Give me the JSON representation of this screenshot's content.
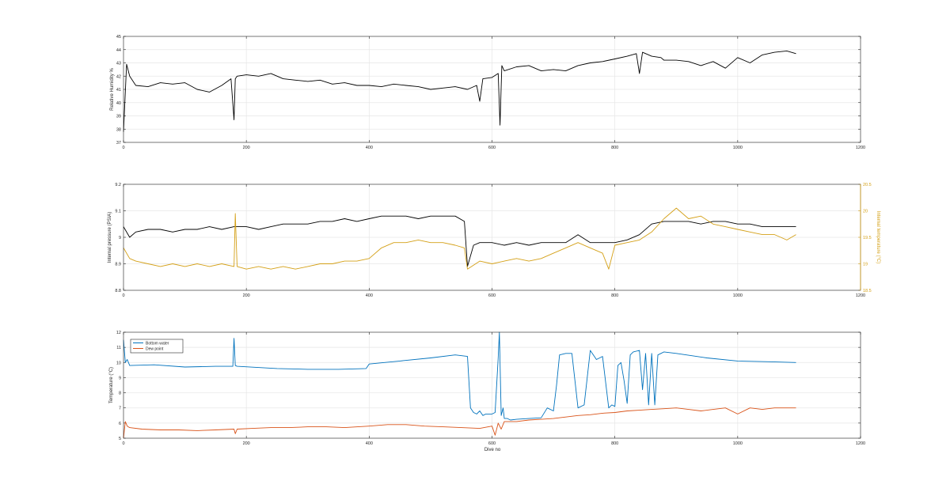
{
  "figure": {
    "xlabel": "Dive no",
    "colors": {
      "black": "#000000",
      "amber": "#d4a017",
      "blue": "#0072bd",
      "orange": "#d95319",
      "grid": "#e6e6e6",
      "axis": "#262626"
    }
  },
  "chart_data": [
    {
      "type": "line",
      "ylabel": "Relative Humidity %",
      "xlim": [
        0,
        1200
      ],
      "ylim": [
        37,
        45
      ],
      "xticks": [
        0,
        200,
        400,
        600,
        800,
        1000,
        1200
      ],
      "yticks": [
        37,
        38,
        39,
        40,
        41,
        42,
        43,
        44,
        45
      ],
      "grid": true,
      "series": [
        {
          "color": "#000000",
          "x": [
            0,
            5,
            10,
            20,
            40,
            60,
            80,
            100,
            120,
            140,
            160,
            175,
            180,
            182,
            185,
            200,
            220,
            240,
            260,
            280,
            300,
            320,
            340,
            360,
            380,
            400,
            420,
            440,
            460,
            480,
            500,
            520,
            540,
            560,
            575,
            580,
            585,
            600,
            610,
            613,
            616,
            620,
            640,
            660,
            680,
            700,
            720,
            740,
            760,
            780,
            800,
            820,
            835,
            840,
            845,
            860,
            875,
            880,
            900,
            920,
            940,
            960,
            980,
            1000,
            1020,
            1040,
            1060,
            1080,
            1095
          ],
          "y": [
            37.8,
            42.9,
            42.0,
            41.3,
            41.2,
            41.5,
            41.4,
            41.5,
            41.0,
            40.8,
            41.3,
            41.8,
            38.7,
            41.8,
            42.0,
            42.1,
            42.0,
            42.2,
            41.8,
            41.7,
            41.6,
            41.7,
            41.4,
            41.5,
            41.3,
            41.3,
            41.2,
            41.4,
            41.3,
            41.2,
            41.0,
            41.1,
            41.2,
            41.0,
            41.3,
            40.1,
            41.8,
            41.9,
            42.2,
            38.3,
            42.8,
            42.4,
            42.7,
            42.8,
            42.4,
            42.5,
            42.4,
            42.8,
            43.0,
            43.1,
            43.3,
            43.5,
            43.7,
            42.2,
            43.8,
            43.5,
            43.4,
            43.2,
            43.2,
            43.1,
            42.8,
            43.1,
            42.6,
            43.4,
            43.0,
            43.6,
            43.8,
            43.9,
            43.7
          ]
        }
      ]
    },
    {
      "type": "line",
      "ylabel": "Internal pressure (PSIA)",
      "ylabel_right": "Internal temperature (°C)",
      "xlim": [
        0,
        1200
      ],
      "ylim": [
        8.8,
        9.2
      ],
      "ylim_right": [
        18.5,
        20.5
      ],
      "xticks": [
        0,
        200,
        400,
        600,
        800,
        1000,
        1200
      ],
      "yticks": [
        8.8,
        8.9,
        9.0,
        9.1,
        9.2
      ],
      "yticks_right": [
        18.5,
        19,
        19.5,
        20,
        20.5
      ],
      "grid": true,
      "series": [
        {
          "axis": "left",
          "color": "#000000",
          "x": [
            0,
            10,
            20,
            40,
            60,
            80,
            100,
            120,
            140,
            160,
            180,
            200,
            220,
            240,
            260,
            280,
            300,
            320,
            340,
            360,
            380,
            400,
            420,
            440,
            460,
            480,
            500,
            520,
            540,
            555,
            560,
            570,
            580,
            600,
            620,
            640,
            660,
            680,
            700,
            720,
            740,
            760,
            780,
            800,
            820,
            840,
            860,
            880,
            900,
            920,
            940,
            960,
            980,
            1000,
            1020,
            1040,
            1060,
            1080,
            1095
          ],
          "y": [
            9.04,
            9.0,
            9.02,
            9.03,
            9.03,
            9.02,
            9.03,
            9.03,
            9.04,
            9.03,
            9.04,
            9.04,
            9.03,
            9.04,
            9.05,
            9.05,
            9.05,
            9.06,
            9.06,
            9.07,
            9.06,
            9.07,
            9.08,
            9.08,
            9.08,
            9.07,
            9.08,
            9.08,
            9.08,
            9.06,
            8.89,
            8.97,
            8.98,
            8.98,
            8.97,
            8.98,
            8.97,
            8.98,
            8.98,
            8.98,
            9.01,
            8.98,
            8.98,
            8.98,
            8.99,
            9.01,
            9.05,
            9.06,
            9.06,
            9.06,
            9.05,
            9.06,
            9.06,
            9.05,
            9.05,
            9.04,
            9.04,
            9.04,
            9.04
          ]
        },
        {
          "axis": "right",
          "color": "#d4a017",
          "x": [
            0,
            10,
            20,
            40,
            60,
            80,
            100,
            120,
            140,
            160,
            180,
            182,
            185,
            200,
            220,
            240,
            260,
            280,
            300,
            320,
            340,
            360,
            380,
            400,
            420,
            440,
            460,
            480,
            500,
            520,
            540,
            555,
            560,
            580,
            600,
            620,
            640,
            660,
            680,
            700,
            720,
            740,
            760,
            780,
            790,
            800,
            820,
            840,
            860,
            880,
            900,
            920,
            940,
            960,
            980,
            1000,
            1020,
            1040,
            1060,
            1080,
            1095
          ],
          "y": [
            19.3,
            19.1,
            19.05,
            19.0,
            18.95,
            19.0,
            18.95,
            19.0,
            18.95,
            19.0,
            18.95,
            19.95,
            18.95,
            18.9,
            18.95,
            18.9,
            18.95,
            18.9,
            18.95,
            19.0,
            19.0,
            19.05,
            19.05,
            19.1,
            19.3,
            19.4,
            19.4,
            19.45,
            19.4,
            19.4,
            19.35,
            19.3,
            18.9,
            19.05,
            19.0,
            19.05,
            19.1,
            19.05,
            19.1,
            19.2,
            19.3,
            19.4,
            19.3,
            19.2,
            18.9,
            19.35,
            19.4,
            19.45,
            19.6,
            19.85,
            20.05,
            19.85,
            19.9,
            19.75,
            19.7,
            19.65,
            19.6,
            19.55,
            19.55,
            19.45,
            19.55
          ]
        }
      ]
    },
    {
      "type": "line",
      "ylabel": "Temperature (°C)",
      "xlabel": "Dive no",
      "xlim": [
        0,
        1200
      ],
      "ylim": [
        5,
        12
      ],
      "xticks": [
        0,
        200,
        400,
        600,
        800,
        1000,
        1200
      ],
      "yticks": [
        5,
        6,
        7,
        8,
        9,
        10,
        11,
        12
      ],
      "grid": true,
      "legend": "top-left",
      "series": [
        {
          "name": "Bottom water",
          "color": "#0072bd",
          "x": [
            0,
            3,
            6,
            10,
            50,
            100,
            150,
            178,
            180,
            182,
            185,
            250,
            300,
            350,
            395,
            400,
            450,
            500,
            540,
            560,
            565,
            570,
            575,
            580,
            585,
            590,
            600,
            605,
            610,
            612,
            615,
            618,
            620,
            625,
            630,
            640,
            660,
            680,
            690,
            700,
            705,
            710,
            720,
            730,
            740,
            750,
            760,
            770,
            780,
            790,
            795,
            800,
            805,
            810,
            815,
            820,
            825,
            830,
            840,
            845,
            850,
            855,
            860,
            865,
            870,
            875,
            880,
            900,
            950,
            1000,
            1050,
            1095
          ],
          "y": [
            11.5,
            10.0,
            10.2,
            9.8,
            9.85,
            9.7,
            9.75,
            9.75,
            11.6,
            9.8,
            9.75,
            9.6,
            9.55,
            9.55,
            9.6,
            9.9,
            10.1,
            10.3,
            10.5,
            10.4,
            7.0,
            6.7,
            6.6,
            6.8,
            6.5,
            6.6,
            6.6,
            6.7,
            10.3,
            12.0,
            6.5,
            7.0,
            6.3,
            6.3,
            6.2,
            6.25,
            6.3,
            6.35,
            7.0,
            6.8,
            8.5,
            10.5,
            10.6,
            10.6,
            7.0,
            7.2,
            10.8,
            10.2,
            10.4,
            7.0,
            7.2,
            7.1,
            9.8,
            10.0,
            8.8,
            7.3,
            10.5,
            10.7,
            10.8,
            8.2,
            10.6,
            7.2,
            10.6,
            7.2,
            10.5,
            10.6,
            10.7,
            10.6,
            10.3,
            10.1,
            10.05,
            10.0
          ]
        },
        {
          "name": "Dew point",
          "color": "#d95319",
          "x": [
            0,
            3,
            6,
            10,
            30,
            60,
            90,
            120,
            150,
            180,
            182,
            185,
            210,
            240,
            270,
            300,
            330,
            360,
            400,
            430,
            460,
            490,
            520,
            550,
            580,
            600,
            605,
            610,
            615,
            620,
            640,
            660,
            680,
            700,
            720,
            740,
            760,
            780,
            800,
            820,
            840,
            860,
            880,
            900,
            920,
            940,
            960,
            980,
            1000,
            1020,
            1040,
            1060,
            1080,
            1095
          ],
          "y": [
            5.0,
            6.1,
            5.8,
            5.7,
            5.6,
            5.55,
            5.55,
            5.5,
            5.55,
            5.6,
            5.3,
            5.6,
            5.65,
            5.7,
            5.7,
            5.75,
            5.75,
            5.7,
            5.8,
            5.9,
            5.9,
            5.8,
            5.75,
            5.7,
            5.65,
            5.8,
            5.2,
            6.0,
            5.6,
            6.1,
            6.1,
            6.2,
            6.25,
            6.3,
            6.4,
            6.5,
            6.55,
            6.65,
            6.7,
            6.8,
            6.85,
            6.9,
            6.95,
            7.0,
            6.9,
            6.8,
            6.9,
            7.0,
            6.6,
            7.0,
            6.9,
            7.0,
            7.0,
            7.0
          ]
        }
      ]
    }
  ]
}
